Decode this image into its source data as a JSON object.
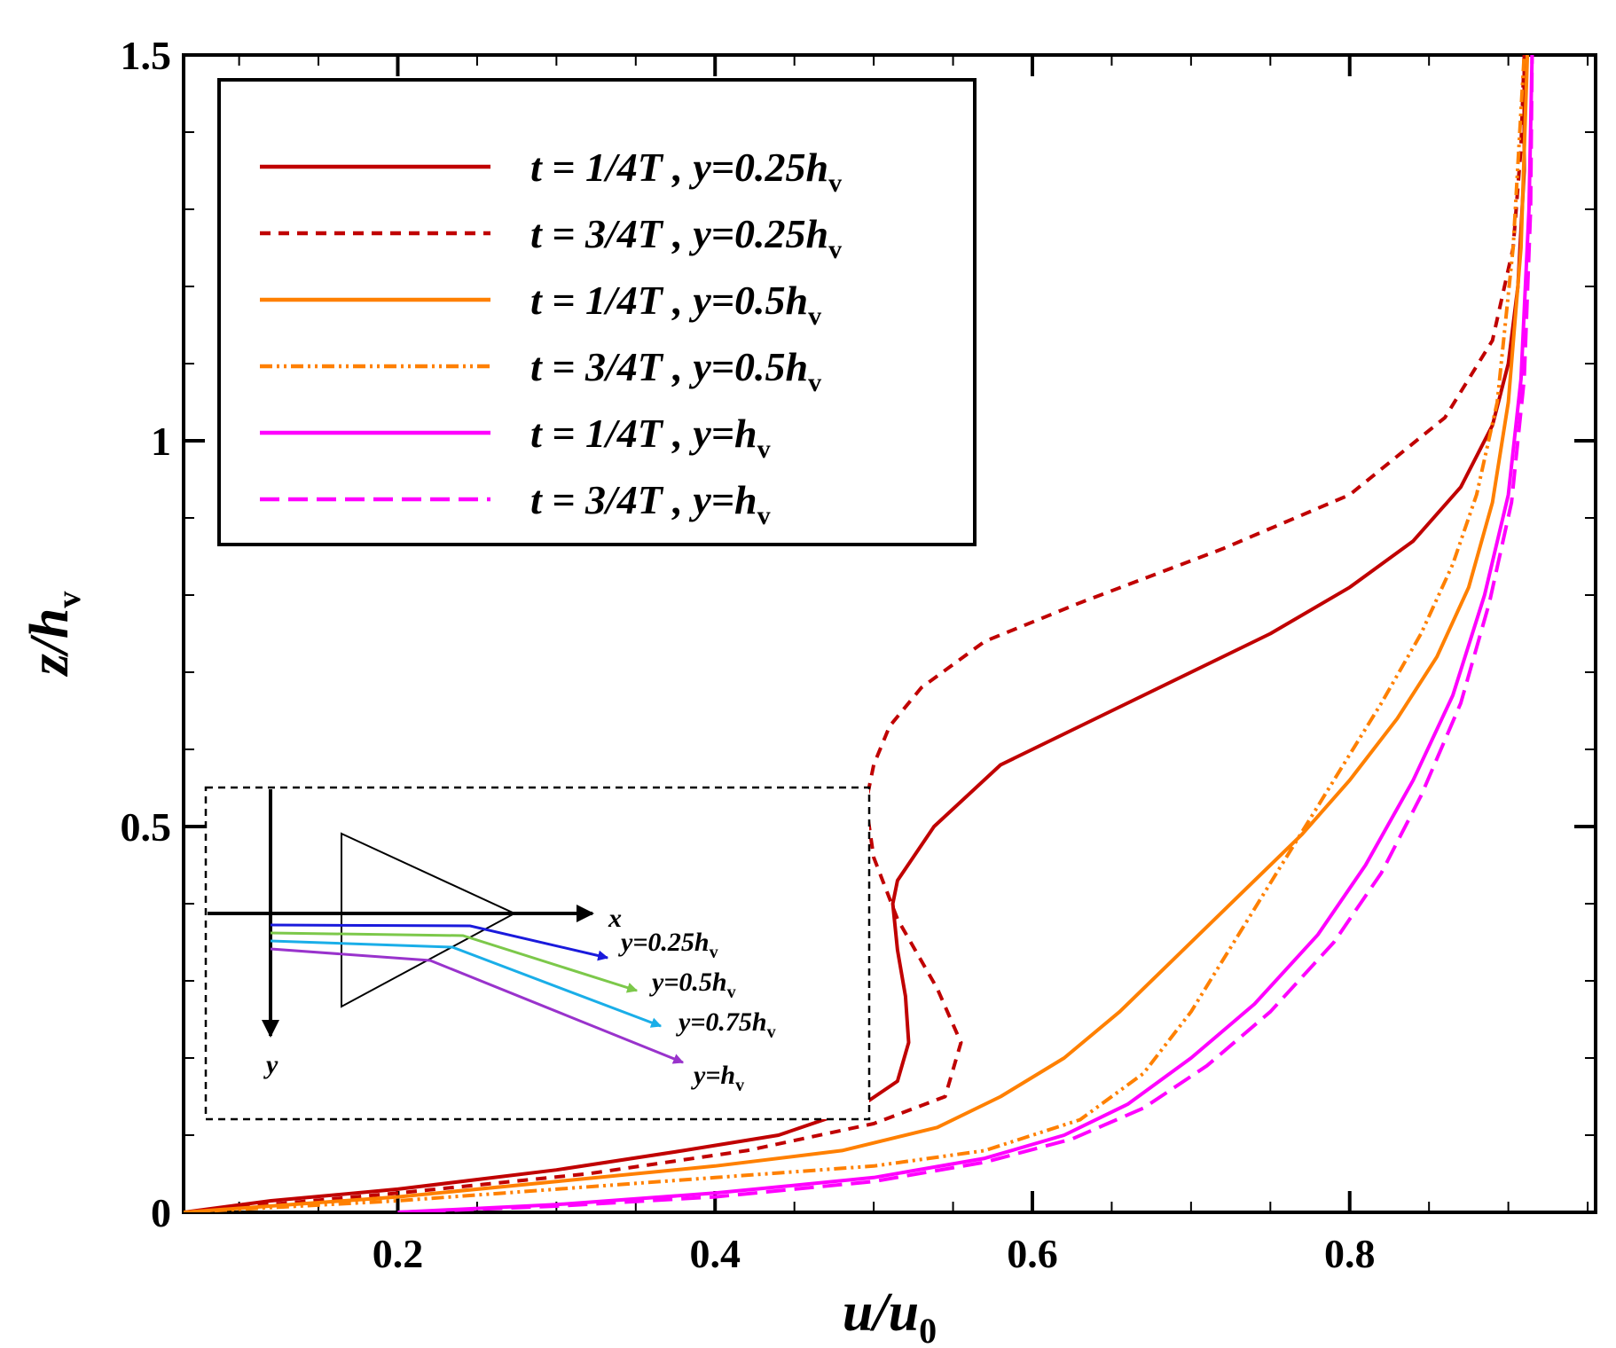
{
  "chart_data": {
    "type": "line",
    "title": "",
    "xlabel_main": "u/u",
    "xlabel_sub": "0",
    "ylabel_main": "z/h",
    "ylabel_sub": "v",
    "xlim": [
      0.065,
      0.955
    ],
    "ylim": [
      0,
      1.5
    ],
    "xticks": [
      0.2,
      0.4,
      0.6,
      0.8
    ],
    "xtick_labels": [
      "0.2",
      "0.4",
      "0.6",
      "0.8"
    ],
    "yticks": [
      0,
      0.5,
      1,
      1.5
    ],
    "ytick_labels": [
      "0",
      "0.5",
      "1",
      "1.5"
    ],
    "legend_position": "top-left",
    "series": [
      {
        "name": "t = 1/4T , y=0.25h",
        "label_main": "t = 1/4T , y=0.25h",
        "label_sub": "v",
        "color": "#c00000",
        "dash": "solid",
        "x": [
          0.065,
          0.12,
          0.2,
          0.3,
          0.38,
          0.44,
          0.49,
          0.515,
          0.522,
          0.52,
          0.515,
          0.512,
          0.515,
          0.538,
          0.58,
          0.65,
          0.75,
          0.8,
          0.84,
          0.87,
          0.89,
          0.9,
          0.906,
          0.91,
          0.91
        ],
        "y": [
          0,
          0.015,
          0.03,
          0.055,
          0.08,
          0.1,
          0.135,
          0.17,
          0.22,
          0.28,
          0.34,
          0.4,
          0.43,
          0.5,
          0.58,
          0.65,
          0.75,
          0.81,
          0.87,
          0.94,
          1.02,
          1.1,
          1.2,
          1.35,
          1.5
        ]
      },
      {
        "name": "t = 3/4T , y=0.25h",
        "label_main": "t = 3/4T , y=0.25h",
        "label_sub": "v",
        "color": "#c00000",
        "dash": "short",
        "x": [
          0.065,
          0.2,
          0.32,
          0.42,
          0.5,
          0.545,
          0.555,
          0.54,
          0.515,
          0.5,
          0.495,
          0.5,
          0.51,
          0.53,
          0.57,
          0.63,
          0.72,
          0.8,
          0.86,
          0.89,
          0.903,
          0.908,
          0.91
        ],
        "y": [
          0,
          0.025,
          0.05,
          0.08,
          0.115,
          0.15,
          0.22,
          0.29,
          0.38,
          0.46,
          0.53,
          0.58,
          0.63,
          0.68,
          0.74,
          0.79,
          0.86,
          0.93,
          1.03,
          1.13,
          1.25,
          1.38,
          1.5
        ]
      },
      {
        "name": "t = 1/4T , y=0.5h",
        "label_main": "t = 1/4T , y=0.5h",
        "label_sub": "v",
        "color": "#ff8000",
        "dash": "solid",
        "x": [
          0.065,
          0.2,
          0.3,
          0.4,
          0.48,
          0.54,
          0.58,
          0.62,
          0.655,
          0.69,
          0.73,
          0.77,
          0.8,
          0.83,
          0.855,
          0.875,
          0.89,
          0.9,
          0.908,
          0.912
        ],
        "y": [
          0,
          0.02,
          0.04,
          0.06,
          0.08,
          0.11,
          0.15,
          0.2,
          0.26,
          0.33,
          0.41,
          0.49,
          0.56,
          0.64,
          0.72,
          0.81,
          0.92,
          1.05,
          1.25,
          1.5
        ]
      },
      {
        "name": "t = 3/4T , y=0.5h",
        "label_main": "t = 3/4T , y=0.5h",
        "label_sub": "v",
        "color": "#ff8000",
        "dash": "dashdot",
        "x": [
          0.065,
          0.2,
          0.3,
          0.4,
          0.5,
          0.57,
          0.63,
          0.67,
          0.7,
          0.73,
          0.76,
          0.79,
          0.82,
          0.845,
          0.865,
          0.88,
          0.893,
          0.903,
          0.91
        ],
        "y": [
          0,
          0.015,
          0.03,
          0.045,
          0.06,
          0.08,
          0.12,
          0.18,
          0.26,
          0.36,
          0.46,
          0.56,
          0.66,
          0.75,
          0.84,
          0.93,
          1.05,
          1.25,
          1.5
        ]
      },
      {
        "name": "t = 1/4T , y=h",
        "label_main": "t = 1/4T , y=h",
        "label_sub": "v",
        "color": "#ff00ff",
        "dash": "solid",
        "x": [
          0.2,
          0.3,
          0.4,
          0.5,
          0.57,
          0.62,
          0.66,
          0.7,
          0.74,
          0.78,
          0.81,
          0.84,
          0.865,
          0.885,
          0.9,
          0.908,
          0.913,
          0.915
        ],
        "y": [
          0,
          0.01,
          0.025,
          0.045,
          0.07,
          0.1,
          0.14,
          0.2,
          0.27,
          0.36,
          0.45,
          0.56,
          0.67,
          0.8,
          0.93,
          1.08,
          1.3,
          1.5
        ]
      },
      {
        "name": "t = 3/4T , y=h",
        "label_main": "t = 3/4T , y=h",
        "label_sub": "v",
        "color": "#ff00ff",
        "dash": "dashed",
        "x": [
          0.2,
          0.3,
          0.4,
          0.5,
          0.57,
          0.625,
          0.67,
          0.71,
          0.75,
          0.79,
          0.82,
          0.845,
          0.87,
          0.888,
          0.902,
          0.91,
          0.914,
          0.915
        ],
        "y": [
          0,
          0.008,
          0.02,
          0.04,
          0.065,
          0.095,
          0.135,
          0.19,
          0.26,
          0.35,
          0.44,
          0.54,
          0.66,
          0.79,
          0.92,
          1.08,
          1.3,
          1.5
        ]
      }
    ],
    "inset": {
      "axis_x_label": "x",
      "axis_y_label": "y",
      "lines": [
        {
          "label_main": "y=0.25h",
          "label_sub": "v",
          "color": "#1a1adc"
        },
        {
          "label_main": "y=0.5h",
          "label_sub": "v",
          "color": "#7cc84a"
        },
        {
          "label_main": "y=0.75h",
          "label_sub": "v",
          "color": "#1aaee8"
        },
        {
          "label_main": "y=h",
          "label_sub": "v",
          "color": "#9933cc"
        }
      ]
    }
  }
}
